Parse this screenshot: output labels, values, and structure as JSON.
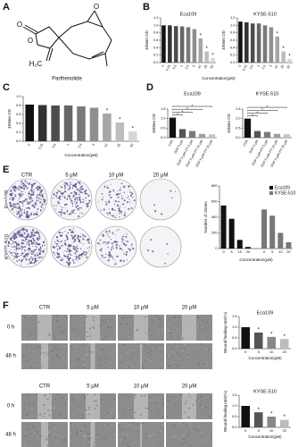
{
  "panel_labels": [
    "A",
    "B",
    "C",
    "D",
    "E",
    "F"
  ],
  "molecule": {
    "name": "Parthenolide",
    "atoms": [
      "O",
      "O",
      "O",
      "H₂C"
    ]
  },
  "colony_assay": {
    "columns": [
      "CTR",
      "5 μM",
      "10 μM",
      "20 μM"
    ],
    "rows": [
      "Eca109",
      "KYSE-510"
    ]
  },
  "wound_assay": [
    {
      "columns": [
        "CTR",
        "5 μM",
        "10 μM",
        "20 μM"
      ],
      "rows": [
        "0 h",
        "48 h"
      ]
    },
    {
      "columns": [
        "CTR",
        "5 μM",
        "10 μM",
        "20 μM"
      ],
      "rows": [
        "0 h",
        "48 h"
      ]
    }
  ],
  "chart_data": [
    {
      "type": "bar",
      "title": "Eca109",
      "ylabel": "450nm OD",
      "xlabel": "Concentration(μM)",
      "categories": [
        "0",
        "0.25",
        "0.5",
        "1",
        "2.5",
        "5",
        "10",
        "25",
        "50"
      ],
      "values": [
        1.0,
        1.0,
        0.98,
        0.97,
        0.95,
        0.9,
        0.65,
        0.3,
        0.12
      ],
      "colors": [
        "#111111",
        "#333333",
        "#4d4d4d",
        "#666666",
        "#7a7a7a",
        "#8f8f8f",
        "#a6a6a6",
        "#bdbdbd",
        "#d6d6d6"
      ],
      "significance": [
        null,
        null,
        null,
        null,
        null,
        null,
        "*",
        "*",
        "*"
      ],
      "ylim": [
        0,
        1.2
      ],
      "yticks": [
        {
          "value": 0,
          "label": "0.0"
        },
        0.2,
        0.4,
        0.6,
        0.8,
        {
          "value": 1,
          "label": "1.0"
        },
        1.2
      ],
      "grid": false
    },
    {
      "type": "bar",
      "title": "KYSE-510",
      "ylabel": "450nm OD",
      "categories": [
        "0",
        "0.25",
        "0.5",
        "1",
        "2.5",
        "5",
        "10",
        "25",
        "50"
      ],
      "values": [
        1.1,
        1.08,
        1.05,
        1.05,
        1.0,
        0.95,
        0.7,
        0.3,
        0.1
      ],
      "colors": [
        "#111111",
        "#333333",
        "#4d4d4d",
        "#666666",
        "#7a7a7a",
        "#8f8f8f",
        "#a6a6a6",
        "#bdbdbd",
        "#d6d6d6"
      ],
      "significance": [
        null,
        null,
        null,
        null,
        null,
        null,
        "*",
        "*",
        "*"
      ],
      "ylim": [
        0,
        1.2
      ],
      "yticks": [
        {
          "value": 0,
          "label": "0.0"
        },
        0.2,
        0.4,
        0.6,
        0.8,
        {
          "value": 1,
          "label": "1.0"
        },
        1.2
      ],
      "grid": false
    },
    {
      "type": "bar",
      "ylabel": "450nm OD",
      "xlabel": "Concentration(μM)",
      "categories": [
        "0",
        "0.25",
        "0.5",
        "1",
        "2.5",
        "5",
        "10",
        "25",
        "50"
      ],
      "values": [
        0.82,
        0.81,
        0.8,
        0.8,
        0.78,
        0.75,
        0.62,
        0.42,
        0.22
      ],
      "colors": [
        "#111111",
        "#333333",
        "#4d4d4d",
        "#666666",
        "#7a7a7a",
        "#8f8f8f",
        "#a6a6a6",
        "#bdbdbd",
        "#d6d6d6"
      ],
      "significance": [
        null,
        null,
        null,
        null,
        null,
        null,
        "*",
        "*",
        "*"
      ],
      "ylim": [
        0,
        1.0
      ],
      "yticks": [
        {
          "value": 0,
          "label": "0.0"
        },
        0.2,
        0.4,
        0.6,
        0.8,
        {
          "value": 1,
          "label": "1.0"
        }
      ],
      "grid": false
    },
    {
      "type": "bar",
      "title": "Eca109",
      "ylabel": "450nm OD",
      "categories": [
        "CTR",
        "DDP 5 μM",
        "DDP 5 μM+PT 5 μM",
        "DDP 5 μM+PT 10 μM",
        "DDP 5 μM+PT 20 μM"
      ],
      "values": [
        1.05,
        0.45,
        0.35,
        0.2,
        0.18
      ],
      "colors": [
        "#111111",
        "#555555",
        "#7a7a7a",
        "#9f9f9f",
        "#c4c4c4"
      ],
      "brackets": [
        "*",
        "*",
        "*",
        "*"
      ],
      "ylim": [
        0,
        1.5
      ],
      "yticks": [
        {
          "value": 0,
          "label": "0.0"
        },
        0.5,
        {
          "value": 1,
          "label": "1.0"
        },
        1.5
      ],
      "grid": false
    },
    {
      "type": "bar",
      "title": "KYSE-510",
      "ylabel": "450nm OD",
      "categories": [
        "CTR",
        "DDP 5 μM",
        "DDP 5 μM+PT 5 μM",
        "DDP 5 μM+PT 10 μM",
        "DDP 5 μM+PT 20 μM"
      ],
      "values": [
        1.0,
        0.35,
        0.3,
        0.2,
        0.18
      ],
      "colors": [
        "#111111",
        "#555555",
        "#7a7a7a",
        "#9f9f9f",
        "#c4c4c4"
      ],
      "brackets": [
        "*",
        "*",
        "*",
        "*"
      ],
      "ylim": [
        0,
        1.5
      ],
      "yticks": [
        {
          "value": 0,
          "label": "0.0"
        },
        0.5,
        {
          "value": 1,
          "label": "1.0"
        },
        1.5
      ],
      "grid": false
    },
    {
      "type": "bar",
      "ylabel": "Number of clones",
      "xlabel": "Concentration(μM)",
      "categories": [
        "0",
        "5",
        "10",
        "20"
      ],
      "series": [
        {
          "name": "Eca109",
          "color": "#111111",
          "values": [
            550,
            380,
            110,
            20
          ]
        },
        {
          "name": "KYSE-510",
          "color": "#777777",
          "values": [
            500,
            420,
            200,
            80
          ]
        }
      ],
      "legend": "upper right",
      "ylim": [
        0,
        800
      ],
      "yticks": [
        0,
        200,
        400,
        600,
        800
      ],
      "grid": false
    },
    {
      "type": "bar",
      "title": "Eca109",
      "ylabel": "Wound healing rate(%)",
      "xlabel": "Concentration(μM)",
      "categories": [
        "0",
        "5",
        "10",
        "20"
      ],
      "values": [
        1.0,
        0.75,
        0.55,
        0.45
      ],
      "colors": [
        "#111111",
        "#555555",
        "#888888",
        "#bbbbbb"
      ],
      "significance": [
        null,
        "*",
        "*",
        "*"
      ],
      "ylim": [
        0,
        1.5
      ],
      "yticks": [
        {
          "value": 0,
          "label": "0.0"
        },
        0.5,
        {
          "value": 1,
          "label": "1.0"
        },
        1.5
      ],
      "grid": false
    },
    {
      "type": "bar",
      "title": "KYSE-510",
      "ylabel": "Wound healing rate(%)",
      "xlabel": "Concentration(μM)",
      "categories": [
        "0",
        "5",
        "10",
        "20"
      ],
      "values": [
        1.0,
        0.7,
        0.5,
        0.35
      ],
      "colors": [
        "#111111",
        "#555555",
        "#888888",
        "#bbbbbb"
      ],
      "significance": [
        null,
        "*",
        "*",
        "*"
      ],
      "ylim": [
        0,
        1.5
      ],
      "yticks": [
        {
          "value": 0,
          "label": "0.0"
        },
        0.5,
        {
          "value": 1,
          "label": "1.0"
        },
        1.5
      ],
      "grid": false
    }
  ]
}
